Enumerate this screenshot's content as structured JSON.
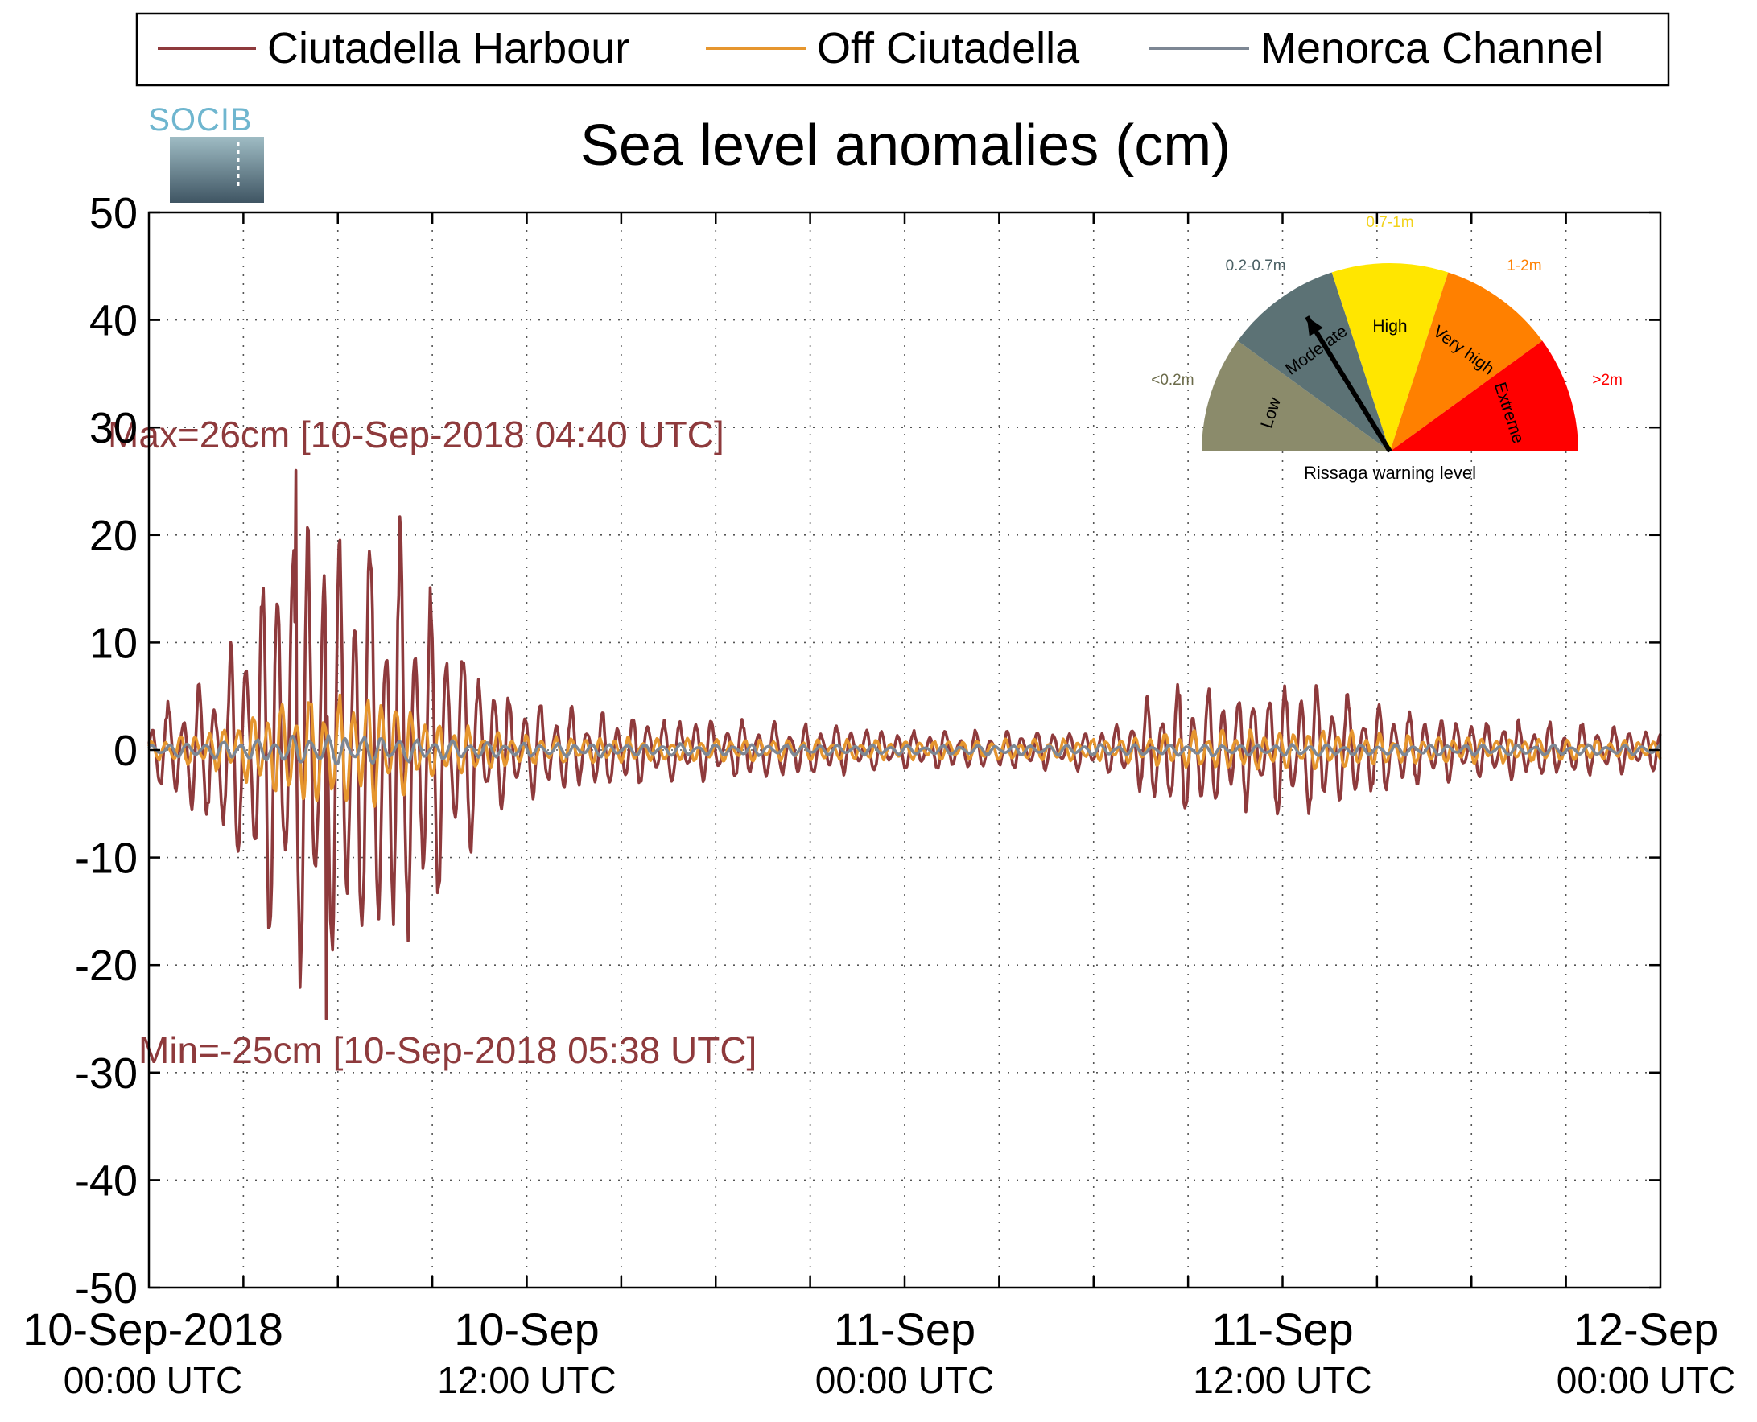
{
  "chart_data": {
    "type": "line",
    "title": "Sea level anomalies (cm)",
    "ylabel": "",
    "xlabel": "",
    "ylim": [
      -50,
      50
    ],
    "yticks": [
      -50,
      -40,
      -30,
      -20,
      -10,
      0,
      10,
      20,
      30,
      40,
      50
    ],
    "xlim": [
      "2018-09-10T00:00",
      "2018-09-12T00:00"
    ],
    "xtick_labels": [
      {
        "date": "10-Sep-2018",
        "time": "00:00 UTC"
      },
      {
        "date": "10-Sep",
        "time": "12:00 UTC"
      },
      {
        "date": "11-Sep",
        "time": "00:00 UTC"
      },
      {
        "date": "11-Sep",
        "time": "12:00 UTC"
      },
      {
        "date": "12-Sep",
        "time": "00:00 UTC"
      }
    ],
    "grid": true,
    "legend_position": "top",
    "annotations": {
      "max": "Max=26cm [10-Sep-2018 04:40 UTC]",
      "min": "Min=-25cm [10-Sep-2018 05:38 UTC]"
    },
    "series": [
      {
        "name": "Ciutadella Harbour",
        "color": "#8e3a3c",
        "envelope_hours": [
          0,
          1,
          2,
          3,
          4,
          5,
          6,
          7,
          8,
          9,
          10,
          11,
          12,
          13,
          14,
          16,
          18,
          20,
          22,
          24,
          26,
          28,
          30,
          31,
          32,
          33,
          34,
          35,
          36,
          37,
          38,
          39,
          40,
          42,
          44,
          46,
          48
        ],
        "envelope_amplitude_cm": [
          3,
          6,
          8,
          13,
          22,
          26,
          23,
          22,
          22,
          16,
          11,
          7,
          5,
          4.5,
          4,
          3.5,
          3,
          3,
          2.5,
          2,
          2,
          2,
          2,
          3,
          6,
          7,
          6,
          6,
          7,
          7,
          6,
          5,
          4,
          3,
          3,
          2.5,
          2
        ],
        "extremes": [
          {
            "label": "max",
            "hour": 4.67,
            "value": 26
          },
          {
            "label": "min",
            "hour": 5.63,
            "value": -25
          }
        ]
      },
      {
        "name": "Off Ciutadella",
        "color": "#e6962e",
        "envelope_hours": [
          0,
          2,
          3,
          4,
          5,
          6,
          7,
          8,
          9,
          10,
          11,
          12,
          16,
          24,
          31,
          33,
          36,
          38,
          40,
          44,
          48
        ],
        "envelope_amplitude_cm": [
          1,
          2,
          3,
          5,
          6,
          5.5,
          6,
          5,
          3,
          2.5,
          2,
          1.5,
          1.2,
          1,
          1.2,
          2,
          2,
          2,
          1.5,
          1.2,
          1
        ]
      },
      {
        "name": "Menorca Channel",
        "color": "#7d8794",
        "envelope_hours": [
          0,
          3,
          5,
          7,
          9,
          12,
          24,
          36,
          48
        ],
        "envelope_amplitude_cm": [
          0.6,
          1,
          1.5,
          1.5,
          1,
          0.7,
          0.5,
          0.6,
          0.5
        ]
      }
    ]
  },
  "logo": {
    "text": "SOCIB"
  },
  "gauge": {
    "caption": "Rissaga warning level",
    "needle_level": "Moderate",
    "segments": [
      {
        "name": "Low",
        "range_label": "<0.2m",
        "color": "#8b8b6b",
        "label_color": "#6b6b4a"
      },
      {
        "name": "Moderate",
        "range_label": "0.2-0.7m",
        "color": "#5c7275",
        "label_color": "#4a6064"
      },
      {
        "name": "High",
        "range_label": "0.7-1m",
        "color": "#ffe600",
        "label_color": "#f2d21a"
      },
      {
        "name": "Very high",
        "range_label": "1-2m",
        "color": "#ff8000",
        "label_color": "#ff8000"
      },
      {
        "name": "Extreme",
        "range_label": ">2m",
        "color": "#ff0000",
        "label_color": "#ff0000"
      }
    ]
  }
}
